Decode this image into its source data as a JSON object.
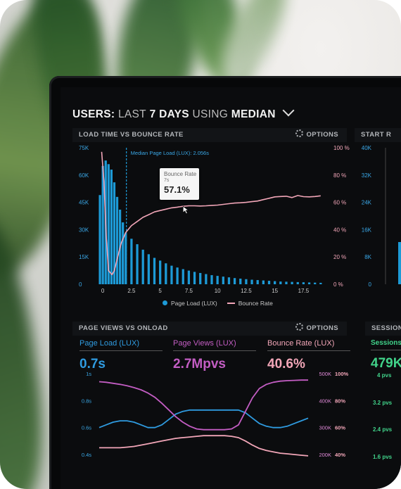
{
  "dashboard": {
    "title_parts": [
      "USERS:",
      "LAST",
      "7 DAYS",
      "USING",
      "MEDIAN"
    ]
  },
  "load_panel": {
    "title": "LOAD TIME VS BOUNCE RATE",
    "options": "OPTIONS",
    "median_label": "Median Page Load (LUX): 2.056s",
    "tooltip": {
      "label": "Bounce Rate",
      "sub": "7s",
      "value": "57.1%"
    },
    "legend": {
      "series1": "Page Load (LUX)",
      "series2": "Bounce Rate"
    }
  },
  "start_panel": {
    "title": "START R",
    "y_ticks": [
      "40K",
      "32K",
      "24K",
      "16K",
      "8K",
      "0"
    ]
  },
  "pv_panel": {
    "title": "PAGE VIEWS VS ONLOAD",
    "options": "OPTIONS",
    "metrics": [
      {
        "label": "Page Load (LUX)",
        "value": "0.7s",
        "color": "#2f9be0"
      },
      {
        "label": "Page Views (LUX)",
        "value": "2.7Mpvs",
        "color": "#c35dc3"
      },
      {
        "label": "Bounce Rate (LUX)",
        "value": "40.6%",
        "color": "#f2a6b8"
      }
    ],
    "left_ticks": [
      "1s",
      "0.8s",
      "0.6s",
      "0.4s"
    ],
    "right_ticks_k": [
      "500K",
      "400K",
      "300K",
      "200K"
    ],
    "right_ticks_pct": [
      "100%",
      "80%",
      "60%",
      "40%"
    ]
  },
  "sessions_panel": {
    "title": "SESSION",
    "label": "Sessions",
    "value": "479K",
    "pvs": [
      "4 pvs",
      "3.2 pvs",
      "2.4 pvs",
      "1.6 pvs"
    ]
  },
  "chart_data": [
    {
      "type": "bar",
      "title": "LOAD TIME VS BOUNCE RATE",
      "x_ticks": [
        "0",
        "2.5",
        "5",
        "7.5",
        "10",
        "12.5",
        "15",
        "17.5"
      ],
      "y_ticks_left": [
        "75K",
        "60K",
        "45K",
        "30K",
        "15K",
        "0"
      ],
      "y_ticks_right": [
        "100 %",
        "80 %",
        "60 %",
        "40 %",
        "20 %",
        "0 %"
      ],
      "ylim_left": [
        0,
        75000
      ],
      "ylim_right": [
        0,
        100
      ],
      "xlim": [
        -0.5,
        19.5
      ],
      "median_x": 2.056,
      "series": [
        {
          "name": "Page Load (LUX)",
          "color": "#1d9ad6",
          "x": [
            -0.25,
            0,
            0.25,
            0.5,
            0.75,
            1,
            1.25,
            1.5,
            1.75,
            2,
            2.5,
            3,
            3.5,
            4,
            4.5,
            5,
            5.5,
            6,
            6.5,
            7,
            7.5,
            8,
            8.5,
            9,
            9.5,
            10,
            10.5,
            11,
            11.5,
            12,
            12.5,
            13,
            13.5,
            14,
            14.5,
            15,
            15.5,
            16,
            16.5,
            17,
            17.5,
            18,
            18.5,
            19
          ],
          "values": [
            49000,
            65000,
            68000,
            66000,
            63000,
            56000,
            48000,
            41000,
            34000,
            28000,
            25000,
            22000,
            19000,
            16500,
            14500,
            13000,
            11500,
            10200,
            9200,
            8300,
            7500,
            6800,
            6200,
            5600,
            5000,
            4600,
            4200,
            3800,
            3400,
            3100,
            2800,
            2500,
            2300,
            2100,
            1900,
            1700,
            1500,
            1400,
            1300,
            1200,
            1100,
            1000,
            900,
            800
          ]
        },
        {
          "name": "Bounce Rate",
          "color": "#f2a6b8",
          "x": [
            -0.1,
            0.1,
            0.3,
            0.5,
            0.8,
            1,
            1.3,
            1.6,
            2,
            2.5,
            3,
            3.5,
            4,
            4.5,
            5,
            5.5,
            6,
            6.5,
            7,
            7.5,
            8,
            8.5,
            9,
            9.5,
            10,
            10.5,
            11,
            11.5,
            12,
            12.5,
            13,
            13.5,
            14,
            14.5,
            15,
            15.5,
            16,
            16.5,
            17,
            17.5,
            18,
            18.5,
            19
          ],
          "values": [
            97,
            75,
            35,
            10,
            7,
            10,
            20,
            30,
            38,
            43,
            46,
            49,
            51,
            53,
            54,
            55,
            56,
            56.5,
            57.1,
            57.5,
            57.5,
            57.3,
            57.5,
            57.8,
            58,
            58.5,
            59,
            59.5,
            59.7,
            60,
            60.5,
            61,
            62,
            63,
            64,
            64.3,
            64.5,
            63.5,
            65,
            64.2,
            64,
            64.3,
            64.8
          ]
        }
      ]
    },
    {
      "type": "line",
      "title": "PAGE VIEWS VS ONLOAD",
      "x": [
        0,
        1,
        2,
        3,
        4,
        5,
        6,
        7,
        8,
        9,
        10,
        11,
        12,
        13,
        14,
        15,
        16,
        17,
        18,
        19,
        20,
        21,
        22,
        23,
        24,
        25,
        26,
        27,
        28,
        29,
        30
      ],
      "ylim_left": [
        0.4,
        1
      ],
      "series": [
        {
          "name": "Page Load (LUX)",
          "color": "#2f9be0",
          "axis": "left_s",
          "values": [
            0.6,
            0.62,
            0.64,
            0.65,
            0.65,
            0.64,
            0.62,
            0.6,
            0.6,
            0.62,
            0.66,
            0.7,
            0.72,
            0.73,
            0.73,
            0.73,
            0.73,
            0.73,
            0.73,
            0.73,
            0.73,
            0.71,
            0.67,
            0.63,
            0.61,
            0.6,
            0.6,
            0.61,
            0.63,
            0.65,
            0.67
          ]
        },
        {
          "name": "Page Views (LUX)",
          "color": "#c35dc3",
          "axis": "right_k",
          "values": [
            470,
            468,
            464,
            460,
            455,
            448,
            440,
            428,
            412,
            390,
            365,
            340,
            320,
            305,
            295,
            292,
            292,
            292,
            292,
            295,
            310,
            360,
            410,
            445,
            460,
            468,
            472,
            474,
            475,
            476,
            476
          ]
        },
        {
          "name": "Bounce Rate (LUX)",
          "color": "#f2a6b8",
          "axis": "right_pct",
          "values": [
            45,
            45,
            45,
            45,
            45.5,
            46,
            47,
            48,
            49,
            50,
            51,
            52,
            52.5,
            53,
            53.5,
            54,
            54,
            54,
            54,
            53.5,
            52.5,
            50,
            47,
            44.5,
            43,
            42,
            41,
            40.5,
            40,
            39.5,
            39
          ]
        }
      ]
    }
  ]
}
